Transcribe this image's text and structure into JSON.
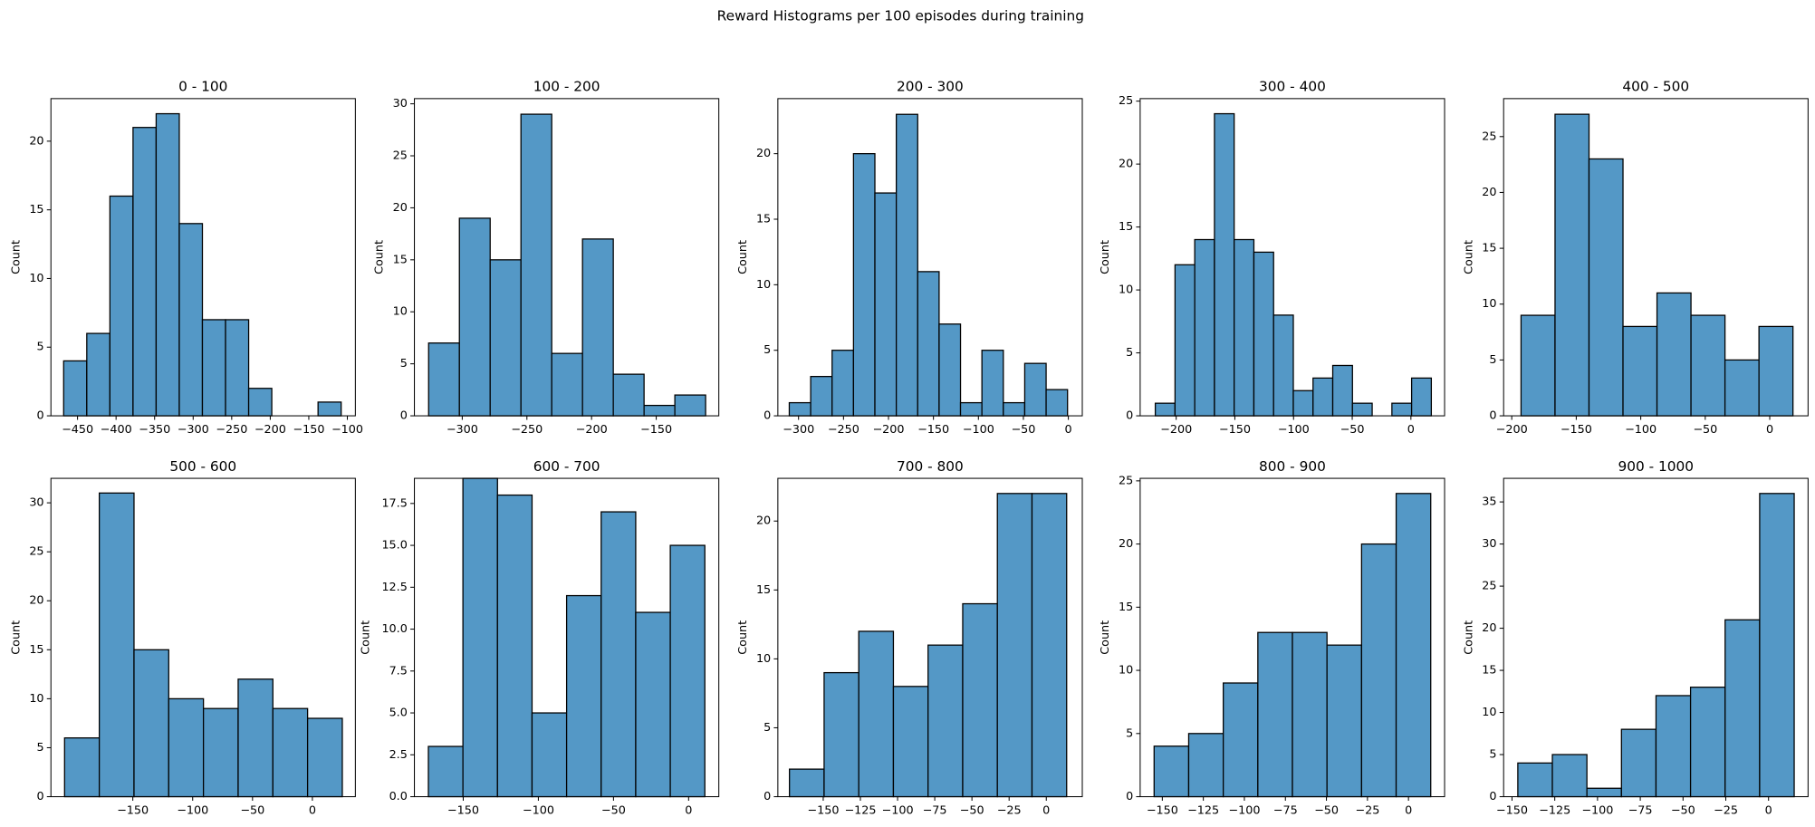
{
  "title": "Reward Histograms per 100 episodes during training",
  "chart_data": [
    {
      "type": "histogram",
      "title": "0 - 100",
      "ylabel": "Count",
      "color": "#5498c6",
      "bins": [
        -468,
        -438,
        -408,
        -378,
        -348,
        -318,
        -288,
        -258,
        -228,
        -198,
        -168,
        -138,
        -108
      ],
      "values": [
        4,
        6,
        16,
        21,
        22,
        14,
        7,
        7,
        2,
        0,
        0,
        1
      ],
      "xlim": [
        -484.5,
        -89.6
      ],
      "xticks": [
        {
          "value": -450,
          "label": "−450"
        },
        {
          "value": -400,
          "label": "−400"
        },
        {
          "value": -350,
          "label": "−350"
        },
        {
          "value": -300,
          "label": "−300"
        },
        {
          "value": -250,
          "label": "−250"
        },
        {
          "value": -200,
          "label": "−200"
        },
        {
          "value": -150,
          "label": "−150"
        },
        {
          "value": -100,
          "label": "−100"
        }
      ],
      "ylim": [
        0,
        23.1
      ],
      "yticks": [
        0,
        5,
        10,
        15,
        20
      ]
    },
    {
      "type": "histogram",
      "title": "100 - 200",
      "ylabel": "Count",
      "color": "#5498c6",
      "bins": [
        -326,
        -302.2,
        -278.4,
        -254.6,
        -230.8,
        -207,
        -183.2,
        -159.4,
        -135.6,
        -111.8
      ],
      "values": [
        7,
        19,
        15,
        29,
        6,
        17,
        4,
        1,
        2
      ],
      "xlim": [
        -337,
        -101.6
      ],
      "xticks": [
        {
          "value": -300,
          "label": "−300"
        },
        {
          "value": -250,
          "label": "−250"
        },
        {
          "value": -200,
          "label": "−200"
        },
        {
          "value": -150,
          "label": "−150"
        }
      ],
      "ylim": [
        0,
        30.5
      ],
      "yticks": [
        0,
        5,
        10,
        15,
        20,
        25,
        30
      ]
    },
    {
      "type": "histogram",
      "title": "200 - 300",
      "ylabel": "Count",
      "color": "#5498c6",
      "bins": [
        -310.3,
        -286.5,
        -262.7,
        -238.9,
        -215.1,
        -191.3,
        -167.5,
        -143.7,
        -119.9,
        -96.1,
        -72.3,
        -48.5,
        -24.7,
        -0.9
      ],
      "values": [
        1,
        3,
        5,
        20,
        17,
        23,
        11,
        7,
        1,
        5,
        1,
        4,
        2
      ],
      "xlim": [
        -323,
        15.5
      ],
      "xticks": [
        {
          "value": -300,
          "label": "−300"
        },
        {
          "value": -250,
          "label": "−250"
        },
        {
          "value": -200,
          "label": "−200"
        },
        {
          "value": -150,
          "label": "−150"
        },
        {
          "value": -100,
          "label": "−100"
        },
        {
          "value": -50,
          "label": "−50"
        },
        0
      ],
      "ylim": [
        0,
        24.2
      ],
      "yticks": [
        0,
        5,
        10,
        15,
        20
      ]
    },
    {
      "type": "histogram",
      "title": "300 - 400",
      "ylabel": "Count",
      "color": "#5498c6",
      "bins": [
        -217.8,
        -201,
        -184.2,
        -167.4,
        -150.6,
        -133.8,
        -117,
        -100.2,
        -83.4,
        -66.6,
        -49.8,
        -33,
        -16.2,
        0.6,
        17.4
      ],
      "values": [
        1,
        12,
        14,
        24,
        14,
        13,
        8,
        2,
        3,
        4,
        1,
        0,
        1,
        3
      ],
      "xlim": [
        -230.7,
        28.7
      ],
      "xticks": [
        {
          "value": -200,
          "label": "−200"
        },
        {
          "value": -150,
          "label": "−150"
        },
        {
          "value": -100,
          "label": "−100"
        },
        {
          "value": -50,
          "label": "−50"
        },
        0
      ],
      "ylim": [
        0,
        25.2
      ],
      "yticks": [
        0,
        5,
        10,
        15,
        20,
        25
      ]
    },
    {
      "type": "histogram",
      "title": "400 - 500",
      "ylabel": "Count",
      "color": "#5498c6",
      "bins": [
        -192.8,
        -166.45,
        -140.1,
        -113.75,
        -87.4,
        -61.05,
        -34.7,
        -8.35,
        18
      ],
      "values": [
        9,
        27,
        23,
        8,
        11,
        9,
        5,
        8
      ],
      "xlim": [
        -206.3,
        29.7
      ],
      "xticks": [
        {
          "value": -200,
          "label": "−200"
        },
        {
          "value": -150,
          "label": "−150"
        },
        {
          "value": -100,
          "label": "−100"
        },
        {
          "value": -50,
          "label": "−50"
        },
        0
      ],
      "ylim": [
        0,
        28.4
      ],
      "yticks": [
        0,
        5,
        10,
        15,
        20,
        25
      ]
    },
    {
      "type": "histogram",
      "title": "500 - 600",
      "ylabel": "Count",
      "color": "#5498c6",
      "bins": [
        -207,
        -178,
        -149,
        -120,
        -91,
        -62,
        -33,
        -4,
        25
      ],
      "values": [
        6,
        31,
        15,
        10,
        9,
        12,
        9,
        8
      ],
      "xlim": [
        -218.4,
        35.9
      ],
      "xticks": [
        {
          "value": -150,
          "label": "−150"
        },
        {
          "value": -100,
          "label": "−100"
        },
        {
          "value": -50,
          "label": "−50"
        },
        0
      ],
      "ylim": [
        0,
        32.5
      ],
      "yticks": [
        0,
        5,
        10,
        15,
        20,
        25,
        30
      ]
    },
    {
      "type": "histogram",
      "title": "600 - 700",
      "ylabel": "Count",
      "color": "#5498c6",
      "bins": [
        -173.2,
        -150.2,
        -127.2,
        -104.2,
        -81.2,
        -58.2,
        -35.2,
        -12.2,
        10.8
      ],
      "values": [
        3,
        19,
        18,
        5,
        12,
        17,
        11,
        15
      ],
      "xlim": [
        -182.5,
        20.1
      ],
      "xticks": [
        {
          "value": -150,
          "label": "−150"
        },
        {
          "value": -100,
          "label": "−100"
        },
        {
          "value": -50,
          "label": "−50"
        },
        0
      ],
      "ylim": [
        0,
        19
      ],
      "yticks": [
        {
          "value": 0,
          "label": "0.0"
        },
        2.5,
        {
          "value": 5,
          "label": "5.0"
        },
        7.5,
        {
          "value": 10,
          "label": "10.0"
        },
        12.5,
        {
          "value": 15,
          "label": "15.0"
        },
        17.5
      ]
    },
    {
      "type": "histogram",
      "title": "700 - 800",
      "ylabel": "Count",
      "color": "#5498c6",
      "bins": [
        -172.7,
        -149.4,
        -126.1,
        -102.8,
        -79.5,
        -56.2,
        -32.9,
        -9.6,
        13.7
      ],
      "values": [
        2,
        9,
        12,
        8,
        11,
        14,
        22,
        22
      ],
      "xlim": [
        -180.5,
        24.2
      ],
      "xticks": [
        {
          "value": -150,
          "label": "−150"
        },
        {
          "value": -125,
          "label": "−125"
        },
        {
          "value": -100,
          "label": "−100"
        },
        {
          "value": -75,
          "label": "−75"
        },
        {
          "value": -50,
          "label": "−50"
        },
        {
          "value": -25,
          "label": "−25"
        },
        0
      ],
      "ylim": [
        0,
        23.1
      ],
      "yticks": [
        0,
        5,
        10,
        15,
        20
      ]
    },
    {
      "type": "histogram",
      "title": "800 - 900",
      "ylabel": "Count",
      "color": "#5498c6",
      "bins": [
        -155,
        -133.93,
        -112.86,
        -91.79,
        -70.72,
        -49.65,
        -28.58,
        -7.51,
        13.56
      ],
      "values": [
        4,
        5,
        9,
        13,
        13,
        12,
        20,
        24
      ],
      "xlim": [
        -163.5,
        22
      ],
      "xticks": [
        {
          "value": -150,
          "label": "−150"
        },
        {
          "value": -125,
          "label": "−125"
        },
        {
          "value": -100,
          "label": "−100"
        },
        {
          "value": -75,
          "label": "−75"
        },
        {
          "value": -50,
          "label": "−50"
        },
        {
          "value": -25,
          "label": "−25"
        },
        0
      ],
      "ylim": [
        0,
        25.2
      ],
      "yticks": [
        0,
        5,
        10,
        15,
        20,
        25
      ]
    },
    {
      "type": "histogram",
      "title": "900 - 1000",
      "ylabel": "Count",
      "color": "#5498c6",
      "bins": [
        -146.6,
        -126.4,
        -106.2,
        -86,
        -65.8,
        -45.6,
        -25.4,
        -5.2,
        15
      ],
      "values": [
        4,
        5,
        1,
        8,
        12,
        13,
        21,
        36
      ],
      "xlim": [
        -154.9,
        23.1
      ],
      "xticks": [
        {
          "value": -150,
          "label": "−150"
        },
        {
          "value": -125,
          "label": "−125"
        },
        {
          "value": -100,
          "label": "−100"
        },
        {
          "value": -75,
          "label": "−75"
        },
        {
          "value": -50,
          "label": "−50"
        },
        {
          "value": -25,
          "label": "−25"
        },
        0
      ],
      "ylim": [
        0,
        37.8
      ],
      "yticks": [
        0,
        5,
        10,
        15,
        20,
        25,
        30,
        35
      ]
    }
  ]
}
